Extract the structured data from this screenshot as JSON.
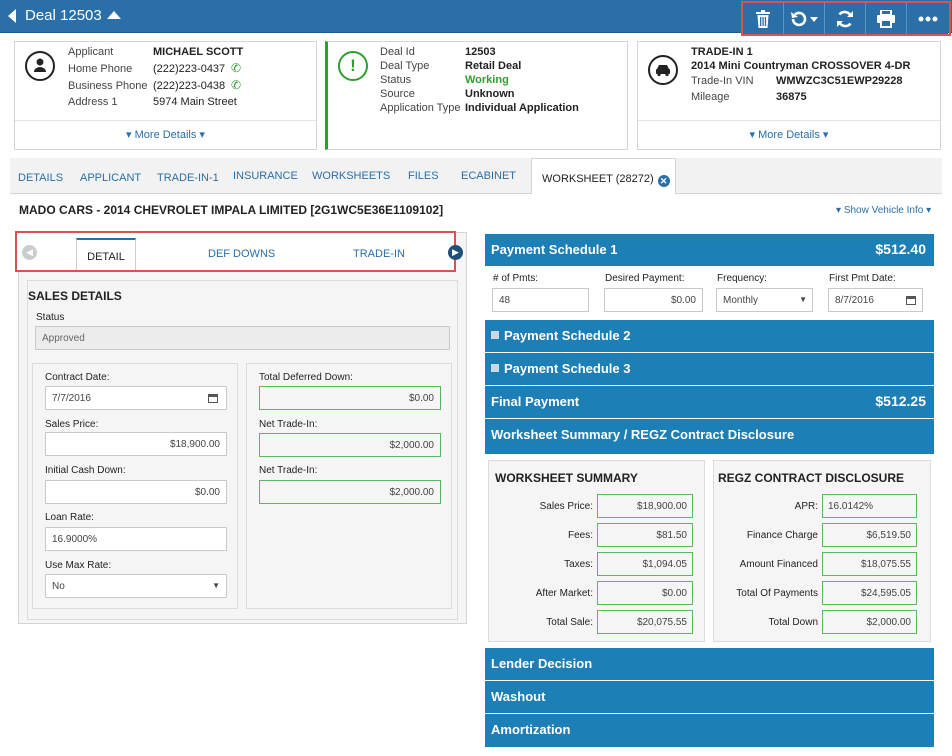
{
  "header": {
    "title": "Deal 12503"
  },
  "toolbar": {
    "icons": [
      "trash-icon",
      "undo-icon",
      "refresh-icon",
      "print-icon",
      "more-icon"
    ]
  },
  "applicant": {
    "labels": [
      "Applicant",
      "Home Phone",
      "Business Phone",
      "Address 1"
    ],
    "values": [
      "MICHAEL SCOTT",
      "(222)223-0437",
      "(222)223-0438",
      "5974 Main Street"
    ],
    "more": "More Details"
  },
  "deal": {
    "labels": [
      "Deal Id",
      "Deal Type",
      "Status",
      "Source",
      "Application Type"
    ],
    "values": [
      "12503",
      "Retail Deal",
      "Working",
      "Unknown",
      "Individual Application"
    ]
  },
  "tradein": {
    "title": "TRADE-IN 1",
    "vehicle": "2014 Mini Countryman CROSSOVER 4-DR",
    "vin_label": "Trade-In VIN",
    "vin": "WMWZC3C51EWP29228",
    "mileage_label": "Mileage",
    "mileage": "36875",
    "more": "More Details"
  },
  "tabs": [
    "DETAILS",
    "APPLICANT",
    "TRADE-IN-1",
    "INSURANCE",
    "WORKSHEETS",
    "FILES",
    "ECABINET"
  ],
  "active_tab": "WORKSHEET (28272)",
  "vehicle_title": "MADO CARS - 2014 CHEVROLET IMPALA LIMITED [2G1WC5E36E1109102]",
  "show_vehicle_info": "Show Vehicle Info",
  "subtabs": {
    "active": "DETAIL",
    "others": [
      "DEF DOWNS",
      "TRADE-IN"
    ]
  },
  "sales": {
    "title": "SALES DETAILS",
    "status_label": "Status",
    "status_value": "Approved",
    "contract_date_label": "Contract Date:",
    "contract_date": "7/7/2016",
    "sales_price_label": "Sales Price:",
    "sales_price": "$18,900.00",
    "initial_cash_label": "Initial Cash Down:",
    "initial_cash": "$0.00",
    "loan_rate_label": "Loan Rate:",
    "loan_rate": "16.9000%",
    "max_rate_label": "Use Max Rate:",
    "max_rate": "No",
    "total_deferred_label": "Total Deferred Down:",
    "total_deferred": "$0.00",
    "net_trade1_label": "Net Trade-In:",
    "net_trade1": "$2,000.00",
    "net_trade2_label": "Net Trade-In:",
    "net_trade2": "$2,000.00"
  },
  "payment1": {
    "title": "Payment Schedule 1",
    "amount": "$512.40",
    "pmts_label": "# of Pmts:",
    "pmts": "48",
    "desired_label": "Desired Payment:",
    "desired": "$0.00",
    "freq_label": "Frequency:",
    "freq": "Monthly",
    "first_label": "First Pmt Date:",
    "first": "8/7/2016"
  },
  "payment2": {
    "title": "Payment Schedule 2"
  },
  "payment3": {
    "title": "Payment Schedule 3"
  },
  "final_payment": {
    "title": "Final Payment",
    "amount": "$512.25"
  },
  "summary_bar": "Worksheet Summary / REGZ Contract Disclosure",
  "worksheet_summary": {
    "title": "WORKSHEET SUMMARY",
    "labels": [
      "Sales Price:",
      "Fees:",
      "Taxes:",
      "After Market:",
      "Total Sale:"
    ],
    "values": [
      "$18,900.00",
      "$81.50",
      "$1,094.05",
      "$0.00",
      "$20,075.55"
    ]
  },
  "regz": {
    "title": "REGZ CONTRACT DISCLOSURE",
    "labels": [
      "APR:",
      "Finance Charge",
      "Amount Financed",
      "Total Of Payments",
      "Total Down"
    ],
    "values": [
      "16.0142%",
      "$6,519.50",
      "$18,075.55",
      "$24,595.05",
      "$2,000.00"
    ]
  },
  "bottom_bars": [
    "Lender Decision",
    "Washout",
    "Amortization"
  ],
  "colors": {
    "header": "#2a6fa8",
    "section_bar": "#1d7fb5",
    "highlight": "#d9534f",
    "status_green": "#2e9e2e"
  }
}
